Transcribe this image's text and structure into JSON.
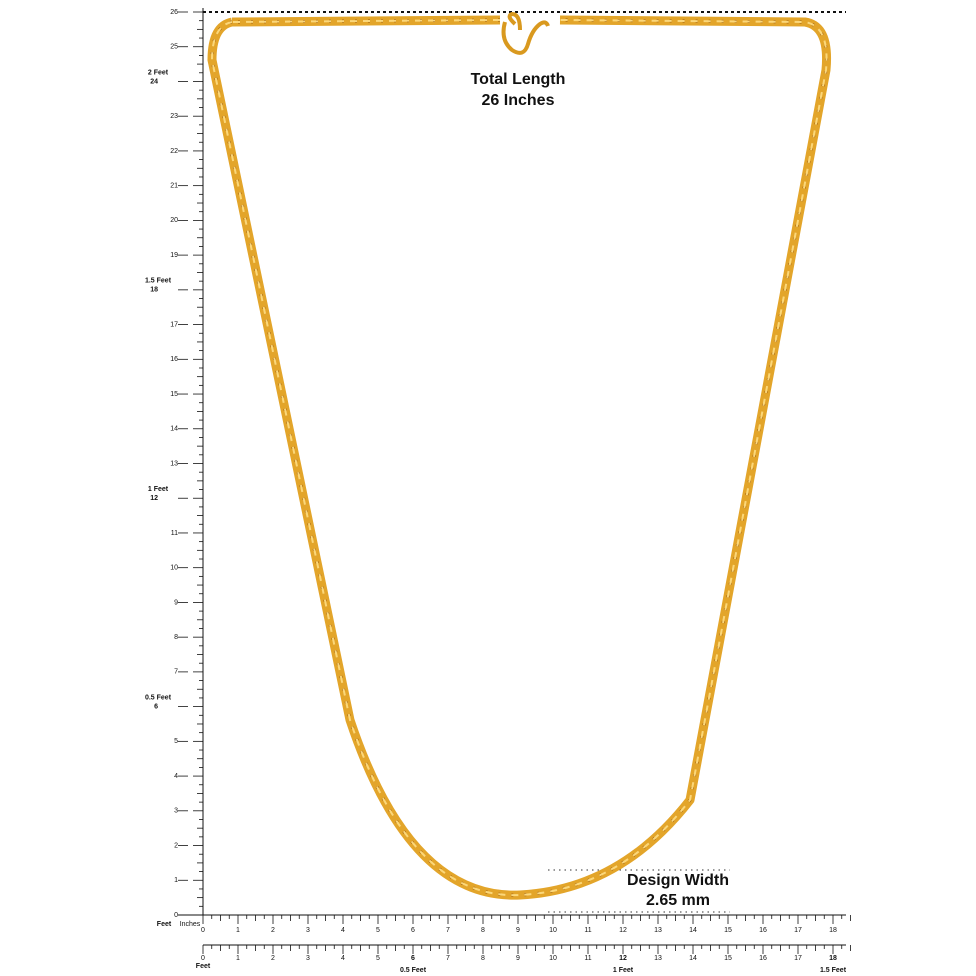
{
  "labels": {
    "total_length": "Total Length",
    "total_length_value": "26 Inches",
    "design_width": "Design Width",
    "design_width_value": "2.65 mm"
  },
  "vertical_ruler": {
    "ticks": [
      0,
      1,
      2,
      3,
      4,
      5,
      6,
      7,
      8,
      9,
      10,
      11,
      12,
      13,
      14,
      15,
      16,
      17,
      18,
      19,
      20,
      21,
      22,
      23,
      24,
      25,
      26
    ],
    "feet_labels": [
      "0.5 Feet",
      "1 Feet",
      "1.5 Feet",
      "2 Feet"
    ],
    "unit": "Feet"
  },
  "horizontal_ruler": {
    "ticks": [
      0,
      1,
      2,
      3,
      4,
      5,
      6,
      7,
      8,
      9,
      10,
      11,
      12,
      13,
      14,
      15,
      16,
      17,
      18
    ],
    "unit_inches": "Inches"
  },
  "bottom_ruler": {
    "ticks": [
      0,
      1,
      2,
      3,
      4,
      5,
      6,
      7,
      8,
      9,
      10,
      11,
      12,
      13,
      14,
      15,
      16,
      17,
      18
    ],
    "feet_labels": [
      "0.5 Feet",
      "1 Feet",
      "1.5 Feet"
    ],
    "unit": "Feet"
  }
}
